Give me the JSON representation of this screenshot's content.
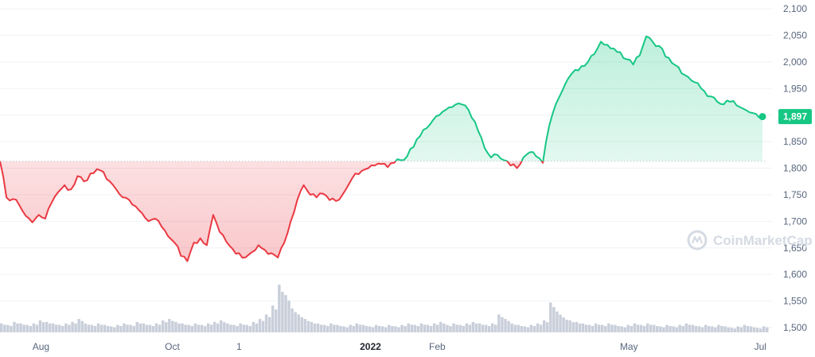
{
  "watermark": {
    "text": "CoinMarketCap",
    "icon": "coinmarketcap-logo-icon"
  },
  "colors": {
    "up": "#16c784",
    "down": "#ea3943",
    "grid": "#eff2f5",
    "volume": "#c9cfda",
    "axis_text": "#58667e"
  },
  "chart_data": {
    "type": "line",
    "title": "",
    "xlabel": "",
    "ylabel": "",
    "ylim": [
      1490,
      2115
    ],
    "yticks": [
      1500,
      1550,
      1600,
      1650,
      1700,
      1750,
      1800,
      1850,
      1900,
      1950,
      2000,
      2050,
      2100
    ],
    "ytick_labels": [
      "1,500",
      "1,550",
      "1,600",
      "1,650",
      "1,700",
      "1,750",
      "1,800",
      "1,850",
      "1,900",
      "1,950",
      "2,000",
      "2,050",
      "2,100"
    ],
    "xticks": [
      {
        "label": "Aug",
        "day": 19,
        "bold": false
      },
      {
        "label": "Oct",
        "day": 80,
        "bold": false
      },
      {
        "label": "1",
        "day": 111,
        "bold": false
      },
      {
        "label": "2022",
        "day": 172,
        "bold": true
      },
      {
        "label": "Feb",
        "day": 203,
        "bold": false
      },
      {
        "label": "May",
        "day": 292,
        "bold": false
      },
      {
        "label": "Jul",
        "day": 353,
        "bold": false
      }
    ],
    "baseline": 1813,
    "current_price": 1897,
    "current_price_label": "1,897",
    "x_days": [
      0,
      3,
      6,
      9,
      12,
      15,
      18,
      21,
      24,
      27,
      30,
      33,
      36,
      39,
      42,
      45,
      48,
      51,
      54,
      57,
      60,
      63,
      66,
      69,
      72,
      75,
      78,
      81,
      84,
      87,
      90,
      93,
      96,
      99,
      102,
      105,
      108,
      111,
      114,
      117,
      120,
      123,
      126,
      129,
      132,
      135,
      138,
      141,
      144,
      147,
      150,
      153,
      156,
      159,
      162,
      165,
      168,
      171,
      174,
      177,
      180,
      183,
      186,
      189,
      192,
      195,
      198,
      201,
      204,
      207,
      210,
      213,
      216,
      219,
      222,
      225,
      228,
      231,
      234,
      237,
      240,
      243,
      246,
      249,
      252,
      255,
      258,
      261,
      264,
      267,
      270,
      273,
      276,
      279,
      282,
      285,
      288,
      291,
      294,
      297,
      300,
      303,
      306,
      309,
      312,
      315,
      318,
      321,
      324,
      327,
      330,
      333,
      336,
      339,
      342,
      345,
      348,
      351,
      354
    ],
    "series": [
      {
        "values": [
          1813,
          1745,
          1742,
          1730,
          1710,
          1698,
          1712,
          1705,
          1735,
          1755,
          1768,
          1760,
          1785,
          1775,
          1790,
          1798,
          1793,
          1775,
          1760,
          1745,
          1740,
          1728,
          1715,
          1700,
          1705,
          1690,
          1672,
          1660,
          1635,
          1625,
          1660,
          1668,
          1655,
          1712,
          1680,
          1662,
          1648,
          1640,
          1632,
          1642,
          1655,
          1646,
          1640,
          1632,
          1660,
          1700,
          1740,
          1768,
          1750,
          1745,
          1752,
          1740,
          1738,
          1750,
          1770,
          1790,
          1795,
          1800,
          1805,
          1808,
          1802,
          1810,
          1815,
          1822,
          1840,
          1860,
          1875,
          1890,
          1900,
          1910,
          1915,
          1922,
          1918,
          1895,
          1870,
          1838,
          1820,
          1825,
          1815,
          1805,
          1800,
          1820,
          1830,
          1822,
          1810,
          1880,
          1920,
          1945,
          1970,
          1985,
          1992,
          2000,
          2015,
          2038,
          2032,
          2025,
          2018,
          2005,
          1995,
          2012,
          2048,
          2038,
          2030,
          2010,
          1998,
          1990,
          1975,
          1965,
          1960,
          1945,
          1935,
          1925,
          1920,
          1925,
          1918,
          1912,
          1905,
          1902,
          1897
        ]
      }
    ],
    "volume_values": [
      6,
      5,
      7,
      6,
      5,
      6,
      8,
      7,
      6,
      5,
      6,
      7,
      9,
      6,
      5,
      6,
      5,
      4,
      5,
      6,
      5,
      7,
      6,
      5,
      6,
      8,
      9,
      7,
      6,
      5,
      6,
      5,
      6,
      7,
      8,
      6,
      5,
      6,
      5,
      7,
      9,
      12,
      18,
      32,
      25,
      16,
      12,
      9,
      7,
      6,
      5,
      6,
      5,
      4,
      5,
      6,
      5,
      4,
      5,
      4,
      5,
      4,
      5,
      6,
      5,
      6,
      5,
      6,
      7,
      5,
      6,
      5,
      6,
      7,
      6,
      5,
      6,
      12,
      9,
      6,
      5,
      4,
      5,
      6,
      8,
      20,
      14,
      10,
      8,
      7,
      6,
      5,
      6,
      5,
      6,
      5,
      4,
      5,
      6,
      5,
      6,
      5,
      4,
      5,
      4,
      5,
      6,
      5,
      4,
      5,
      4,
      5,
      4,
      3,
      4,
      5,
      4,
      3,
      4
    ],
    "volume_max": 32
  }
}
